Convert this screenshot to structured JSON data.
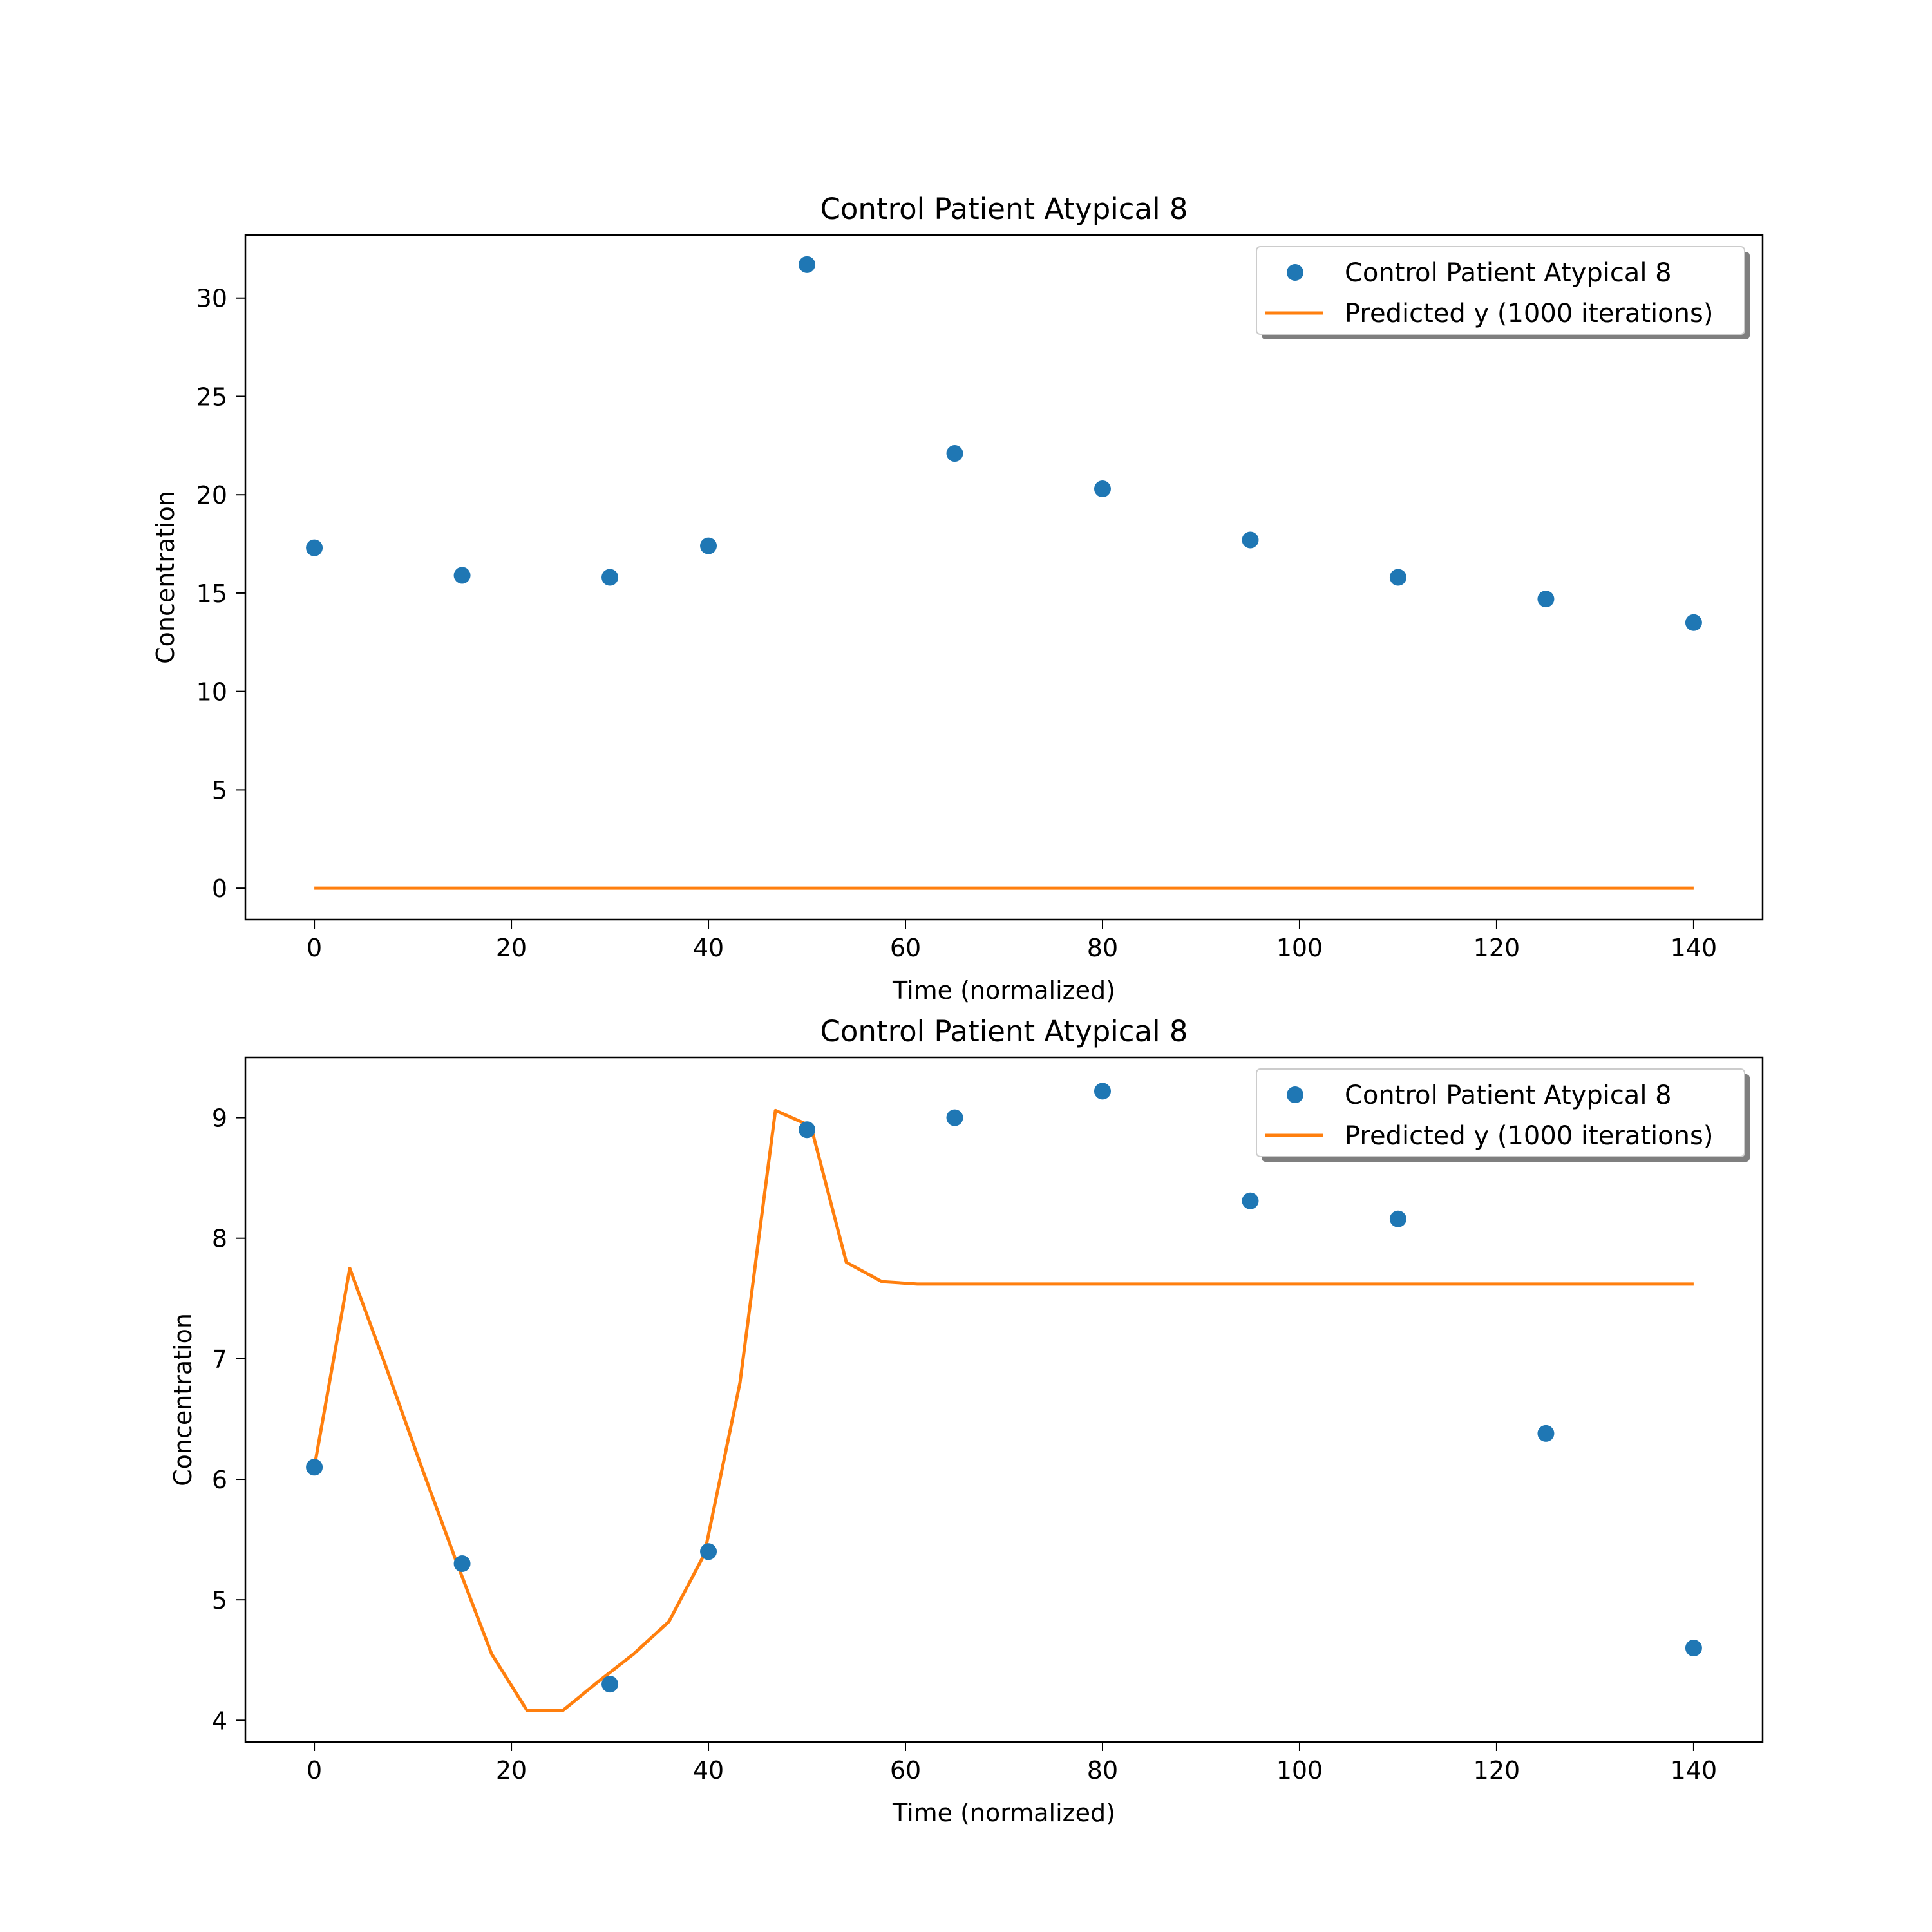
{
  "chart_data": [
    {
      "type": "scatter",
      "title": "Control Patient Atypical 8",
      "xlabel": "Time (normalized)",
      "ylabel": "Concentration",
      "xlim": [
        -7,
        147
      ],
      "ylim": [
        -1.6,
        33.2
      ],
      "xticks": [
        0,
        20,
        40,
        60,
        80,
        100,
        120,
        140
      ],
      "yticks": [
        0,
        5,
        10,
        15,
        20,
        25,
        30
      ],
      "grid": false,
      "legend_position": "top-right",
      "series": [
        {
          "name": "Control Patient Atypical 8",
          "kind": "scatter",
          "color": "#1f77b4",
          "x": [
            0,
            15,
            30,
            40,
            50,
            65,
            80,
            95,
            110,
            125,
            140
          ],
          "y": [
            17.3,
            15.9,
            15.8,
            17.4,
            31.7,
            22.1,
            20.3,
            17.7,
            15.8,
            14.7,
            13.5
          ]
        },
        {
          "name": "Predicted y (1000 iterations)",
          "kind": "line",
          "color": "#ff7f0e",
          "x": [
            0,
            140
          ],
          "y": [
            0,
            0
          ]
        }
      ]
    },
    {
      "type": "scatter",
      "title": "Control Patient Atypical 8",
      "xlabel": "Time (normalized)",
      "ylabel": "Concentration",
      "xlim": [
        -7,
        147
      ],
      "ylim": [
        3.82,
        9.5
      ],
      "xticks": [
        0,
        20,
        40,
        60,
        80,
        100,
        120,
        140
      ],
      "yticks": [
        4,
        5,
        6,
        7,
        8,
        9
      ],
      "grid": false,
      "legend_position": "top-right",
      "series": [
        {
          "name": "Control Patient Atypical 8",
          "kind": "scatter",
          "color": "#1f77b4",
          "x": [
            0,
            15,
            30,
            40,
            50,
            65,
            80,
            95,
            110,
            125,
            140
          ],
          "y": [
            6.1,
            5.3,
            4.3,
            5.4,
            8.9,
            9.0,
            9.22,
            8.31,
            8.16,
            6.38,
            4.6
          ]
        },
        {
          "name": "Predicted y (1000 iterations)",
          "kind": "line",
          "color": "#ff7f0e",
          "x": [
            0,
            3.6,
            7.2,
            10.8,
            14.4,
            18.0,
            21.6,
            25.2,
            28.8,
            32.4,
            36.0,
            39.6,
            43.2,
            46.8,
            50.4,
            54.0,
            57.6,
            61.2,
            65,
            80,
            100,
            120,
            140
          ],
          "y": [
            6.1,
            7.75,
            6.95,
            6.12,
            5.32,
            4.55,
            4.08,
            4.08,
            4.32,
            4.55,
            4.82,
            5.38,
            6.8,
            9.06,
            8.93,
            7.8,
            7.64,
            7.62,
            7.62,
            7.62,
            7.62,
            7.62,
            7.62
          ]
        }
      ]
    }
  ]
}
